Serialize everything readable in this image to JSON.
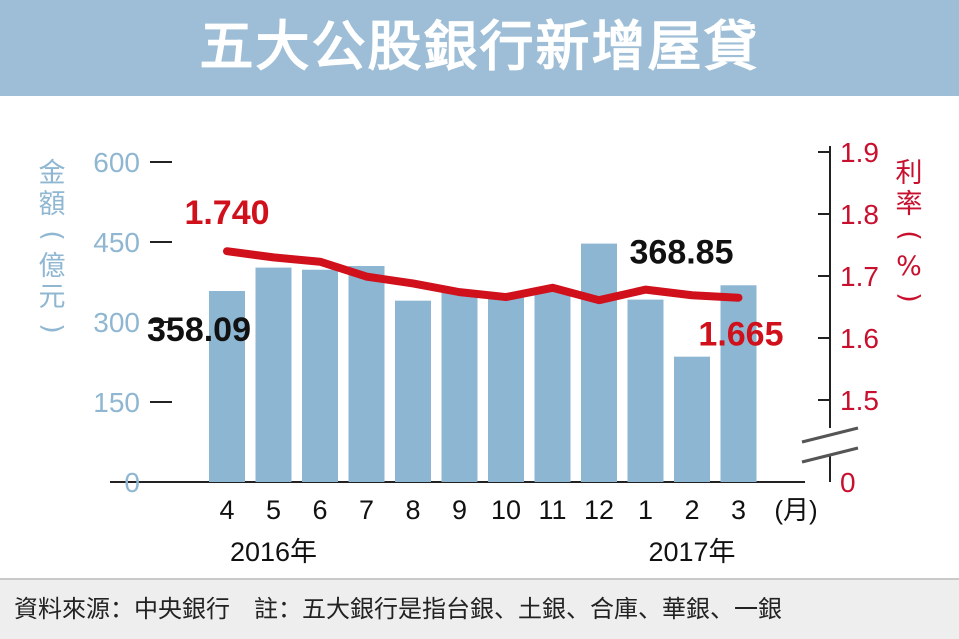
{
  "title": "五大公股銀行新增屋貸",
  "footer": "資料來源：中央銀行　註：五大銀行是指台銀、土銀、合庫、華銀、一銀",
  "colors": {
    "header": "#9dbed6",
    "bars": "#8db6d3",
    "line": "#d0101b",
    "leftAxis": "#8fb7d2",
    "rightAxis": "#c8102e",
    "label": "#111111"
  },
  "chart_data": {
    "type": "bar",
    "categories": [
      "4",
      "5",
      "6",
      "7",
      "8",
      "9",
      "10",
      "11",
      "12",
      "1",
      "2",
      "3"
    ],
    "x_unit": "(月)",
    "year_labels": [
      {
        "text": "2016年",
        "category": "5"
      },
      {
        "text": "2017年",
        "category": "2"
      }
    ],
    "left_axis": {
      "label_chars": [
        "金",
        "額",
        "(",
        "億",
        "元",
        ")"
      ],
      "ticks": [
        0,
        150,
        300,
        450,
        600
      ],
      "ylim": [
        0,
        600
      ]
    },
    "right_axis": {
      "label_chars": [
        "利",
        "率",
        "(",
        "%",
        ")"
      ],
      "ticks": [
        0,
        1.5,
        1.6,
        1.7,
        1.8,
        1.9
      ],
      "broken_between": [
        0,
        1.5
      ]
    },
    "series": [
      {
        "type": "bar",
        "axis": "left",
        "values": [
          358.09,
          402,
          398,
          405,
          340,
          360,
          350,
          362,
          447,
          342,
          235,
          368.85
        ]
      },
      {
        "type": "line",
        "axis": "right",
        "values": [
          1.74,
          1.73,
          1.723,
          1.699,
          1.688,
          1.674,
          1.666,
          1.681,
          1.661,
          1.678,
          1.669,
          1.665
        ]
      }
    ],
    "annotations": [
      {
        "text": "358.09",
        "series": 0,
        "point": 0
      },
      {
        "text": "368.85",
        "series": 0,
        "point": 11
      },
      {
        "text": "1.740",
        "series": 1,
        "point": 0
      },
      {
        "text": "1.665",
        "series": 1,
        "point": 11
      }
    ]
  }
}
